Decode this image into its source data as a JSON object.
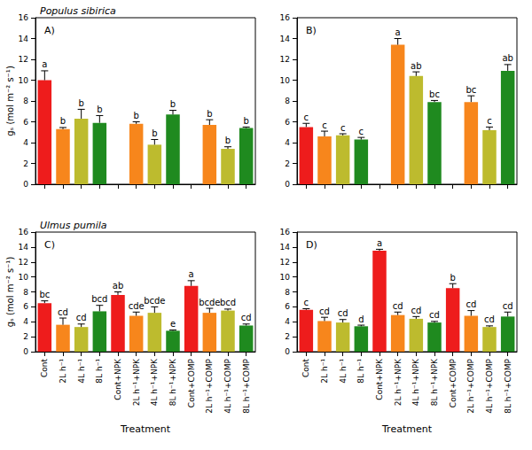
{
  "chart_data": [
    {
      "type": "bar",
      "title": "A)",
      "subtitle": "Populus sibirica",
      "ylabel": "gₛ (mol m⁻² s⁻¹)",
      "categories": [
        "Cont",
        "2L h⁻¹",
        "4L h⁻¹",
        "8L h⁻¹",
        "Cont+NPK",
        "2L h⁻¹+NPK",
        "4L h⁻¹+NPK",
        "8L h⁻¹+NPK",
        "Cont+COMP",
        "2L h⁻¹+COMP",
        "4L h⁻¹+COMP",
        "8L h⁻¹+COMP"
      ],
      "values": [
        10.0,
        5.3,
        6.3,
        5.9,
        null,
        5.8,
        3.8,
        6.7,
        null,
        5.7,
        3.4,
        5.4
      ],
      "errors": [
        0.9,
        0.15,
        0.9,
        0.7,
        null,
        0.2,
        0.5,
        0.4,
        null,
        0.5,
        0.2,
        0.1
      ],
      "annotations": [
        "a",
        "b",
        "b",
        "b",
        null,
        "b",
        "b",
        "b",
        null,
        "b",
        "b",
        "b"
      ],
      "colors": [
        "#ee1c1c",
        "#f7861c",
        "#bdbb2e",
        "#1f8a1f",
        "#ee1c1c",
        "#f7861c",
        "#bdbb2e",
        "#1f8a1f",
        "#ee1c1c",
        "#f7861c",
        "#bdbb2e",
        "#1f8a1f"
      ],
      "ylim": [
        0,
        16
      ],
      "yticks": [
        0,
        2,
        4,
        6,
        8,
        10,
        12,
        14,
        16
      ],
      "grid": false,
      "tick_labels": "y"
    },
    {
      "type": "bar",
      "title": "B)",
      "categories": [
        "Cont",
        "2L h⁻¹",
        "4L h⁻¹",
        "8L h⁻¹",
        "Cont+NPK",
        "2L h⁻¹+NPK",
        "4L h⁻¹+NPK",
        "8L h⁻¹+NPK",
        "Cont+COMP",
        "2L h⁻¹+COMP",
        "4L h⁻¹+COMP",
        "8L h⁻¹+COMP"
      ],
      "values": [
        5.5,
        4.6,
        4.7,
        4.3,
        null,
        13.4,
        10.4,
        7.9,
        null,
        7.9,
        5.2,
        10.9
      ],
      "errors": [
        0.35,
        0.5,
        0.15,
        0.2,
        null,
        0.6,
        0.4,
        0.15,
        null,
        0.6,
        0.3,
        0.6
      ],
      "annotations": [
        "c",
        "c",
        "c",
        "c",
        null,
        "a",
        "ab",
        "bc",
        null,
        "bc",
        "c",
        "ab"
      ],
      "colors": [
        "#ee1c1c",
        "#f7861c",
        "#bdbb2e",
        "#1f8a1f",
        "#ee1c1c",
        "#f7861c",
        "#bdbb2e",
        "#1f8a1f",
        "#ee1c1c",
        "#f7861c",
        "#bdbb2e",
        "#1f8a1f"
      ],
      "ylim": [
        0,
        16
      ],
      "yticks": [
        0,
        2,
        4,
        6,
        8,
        10,
        12,
        14,
        16
      ],
      "grid": false,
      "tick_labels": "y"
    },
    {
      "type": "bar",
      "title": "C)",
      "subtitle": "Ulmus pumila",
      "ylabel": "gₛ (mol m⁻² s⁻¹)",
      "xlabel": "Treatment",
      "categories": [
        "Cont",
        "2L h⁻¹",
        "4L h⁻¹",
        "8L h⁻¹",
        "Cont+NPK",
        "2L h⁻¹+NPK",
        "4L h⁻¹+NPK",
        "8L h⁻¹+NPK",
        "Cont+COMP",
        "2L h⁻¹+COMP",
        "4L h⁻¹+COMP",
        "8L h⁻¹+COMP"
      ],
      "values": [
        6.5,
        3.6,
        3.3,
        5.4,
        7.6,
        4.8,
        5.2,
        2.8,
        8.8,
        5.2,
        5.5,
        3.5
      ],
      "errors": [
        0.3,
        0.9,
        0.4,
        0.8,
        0.4,
        0.5,
        0.8,
        0.1,
        0.7,
        0.6,
        0.2,
        0.2
      ],
      "annotations": [
        "bc",
        "cd",
        "cd",
        "bcd",
        "ab",
        "cde",
        "bcde",
        "e",
        "a",
        "bcde",
        "bcd",
        "cd"
      ],
      "colors": [
        "#ee1c1c",
        "#f7861c",
        "#bdbb2e",
        "#1f8a1f",
        "#ee1c1c",
        "#f7861c",
        "#bdbb2e",
        "#1f8a1f",
        "#ee1c1c",
        "#f7861c",
        "#bdbb2e",
        "#1f8a1f"
      ],
      "ylim": [
        0,
        16
      ],
      "yticks": [
        0,
        2,
        4,
        6,
        8,
        10,
        12,
        14,
        16
      ],
      "grid": false,
      "tick_labels": true
    },
    {
      "type": "bar",
      "title": "D)",
      "xlabel": "Treatment",
      "categories": [
        "Cont",
        "2L h⁻¹",
        "4L h⁻¹",
        "8L h⁻¹",
        "Cont+NPK",
        "2L h⁻¹+NPK",
        "4L h⁻¹+NPK",
        "8L h⁻¹+NPK",
        "Cont+COMP",
        "2L h⁻¹+COMP",
        "4L h⁻¹+COMP",
        "8L h⁻¹+COMP"
      ],
      "values": [
        5.6,
        4.1,
        3.9,
        3.4,
        13.5,
        4.9,
        4.4,
        3.9,
        8.5,
        4.8,
        3.3,
        4.7
      ],
      "errors": [
        0.15,
        0.5,
        0.4,
        0.15,
        0.2,
        0.4,
        0.3,
        0.15,
        0.6,
        0.7,
        0.15,
        0.6
      ],
      "annotations": [
        "c",
        "cd",
        "cd",
        "d",
        "a",
        "cd",
        "cd",
        "cd",
        "b",
        "cd",
        "cd",
        "cd"
      ],
      "colors": [
        "#ee1c1c",
        "#f7861c",
        "#bdbb2e",
        "#1f8a1f",
        "#ee1c1c",
        "#f7861c",
        "#bdbb2e",
        "#1f8a1f",
        "#ee1c1c",
        "#f7861c",
        "#bdbb2e",
        "#1f8a1f"
      ],
      "ylim": [
        0,
        16
      ],
      "yticks": [
        0,
        2,
        4,
        6,
        8,
        10,
        12,
        14,
        16
      ],
      "grid": false,
      "tick_labels": true
    }
  ]
}
